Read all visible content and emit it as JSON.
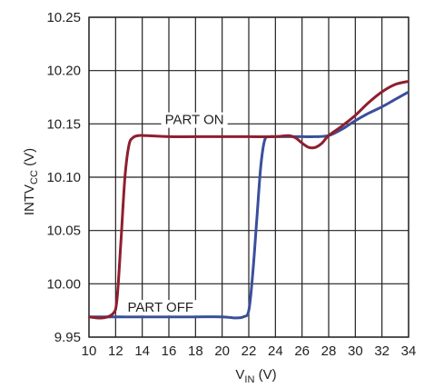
{
  "chart_data": {
    "type": "line",
    "title": "",
    "xlabel": {
      "main": "V",
      "sub": "IN",
      "unit": " (V)"
    },
    "ylabel": {
      "main": "INTV",
      "sub": "CC",
      "unit": "  (V)"
    },
    "xlim": [
      10,
      34
    ],
    "ylim": [
      9.95,
      10.25
    ],
    "x_ticks": [
      10,
      12,
      14,
      16,
      18,
      20,
      22,
      24,
      26,
      28,
      30,
      32,
      34
    ],
    "x_tick_labels": [
      "10",
      "12",
      "14",
      "16",
      "18",
      "20",
      "22",
      "24",
      "26",
      "28",
      "30",
      "32",
      "34"
    ],
    "y_ticks": [
      9.95,
      10.0,
      10.05,
      10.1,
      10.15,
      10.2,
      10.25
    ],
    "y_tick_labels": [
      "9.95",
      "10.00",
      "10.05",
      "10.10",
      "10.15",
      "10.20",
      "10.25"
    ],
    "grid": true,
    "colors": {
      "part_off": "#3a4f9c",
      "part_on": "#8e1f2e",
      "grid": "#231f20"
    },
    "annotations": [
      {
        "text": "PART ON",
        "x": 15.7,
        "y": 10.154
      },
      {
        "text": "PART OFF",
        "x": 12.9,
        "y": 9.978
      }
    ],
    "series": [
      {
        "id": "part_off",
        "x": [
          10,
          11,
          11.8,
          12.4,
          14,
          16,
          18,
          20,
          21,
          21.6,
          22.0,
          22.3,
          22.6,
          22.9,
          23.2,
          23.6,
          24,
          25,
          26,
          27,
          28,
          29,
          30,
          31,
          32,
          33,
          34
        ],
        "y": [
          9.969,
          9.969,
          9.969,
          9.969,
          9.969,
          9.969,
          9.969,
          9.969,
          9.968,
          9.969,
          9.975,
          10.01,
          10.06,
          10.11,
          10.135,
          10.138,
          10.138,
          10.138,
          10.138,
          10.138,
          10.139,
          10.145,
          10.153,
          10.16,
          10.166,
          10.173,
          10.18
        ]
      },
      {
        "id": "part_on",
        "x": [
          10,
          11,
          11.8,
          12.1,
          12.4,
          12.7,
          13.0,
          13.3,
          13.7,
          14.3,
          16,
          18,
          20,
          22,
          24,
          25,
          25.5,
          26,
          26.5,
          27,
          27.5,
          28,
          29,
          30,
          31,
          32,
          33,
          34
        ],
        "y": [
          9.969,
          9.968,
          9.972,
          9.985,
          10.04,
          10.1,
          10.13,
          10.137,
          10.139,
          10.139,
          10.138,
          10.138,
          10.138,
          10.138,
          10.138,
          10.139,
          10.137,
          10.132,
          10.128,
          10.128,
          10.132,
          10.139,
          10.148,
          10.158,
          10.17,
          10.18,
          10.187,
          10.19
        ]
      }
    ]
  }
}
